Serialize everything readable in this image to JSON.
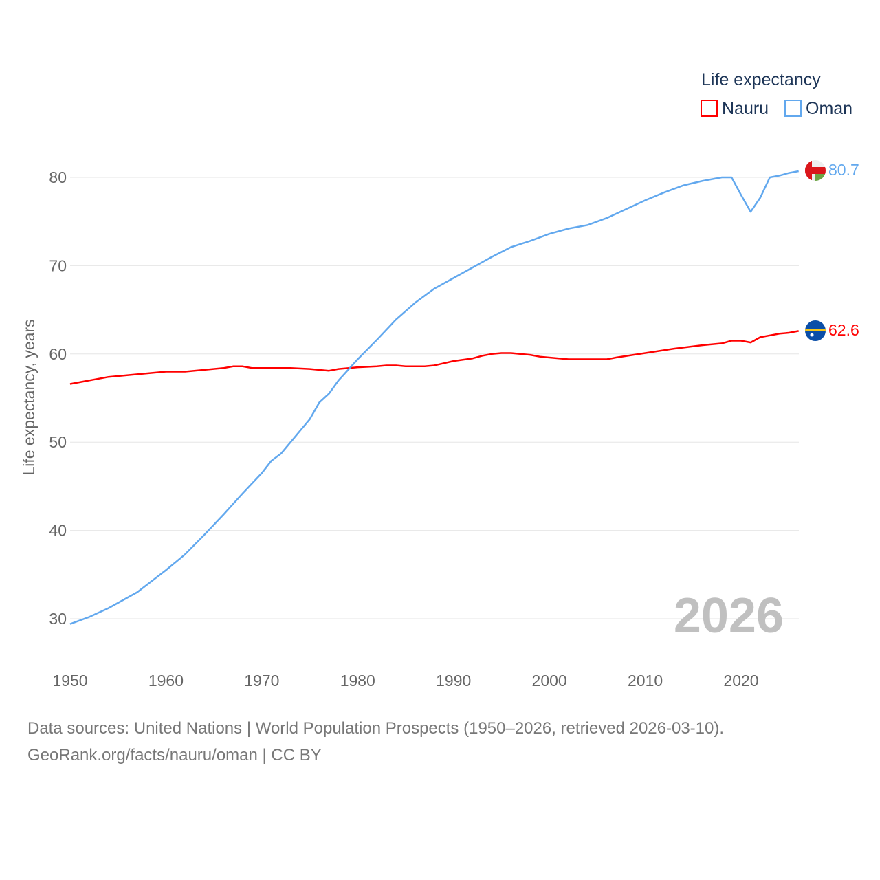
{
  "chart_data": {
    "type": "line",
    "title": "Life expectancy",
    "xlabel": "",
    "ylabel": "Life expectancy, years",
    "xlim": [
      1950,
      2026
    ],
    "ylim": [
      25,
      85
    ],
    "yticks": [
      30,
      40,
      50,
      60,
      70,
      80
    ],
    "xticks": [
      1950,
      1960,
      1970,
      1980,
      1990,
      2000,
      2010,
      2020
    ],
    "grid": true,
    "legend_position": "top-right",
    "year_label": "2026",
    "series": [
      {
        "name": "Nauru",
        "color": "#ff0000",
        "end_label": "62.6",
        "x": [
          1950,
          1954,
          1960,
          1962,
          1966,
          1967,
          1968,
          1969,
          1973,
          1975,
          1977,
          1978,
          1980,
          1982,
          1983,
          1984,
          1985,
          1987,
          1988,
          1990,
          1992,
          1993,
          1994,
          1995,
          1996,
          1998,
          1999,
          2002,
          2004,
          2006,
          2007,
          2010,
          2013,
          2016,
          2018,
          2019,
          2020,
          2021,
          2022,
          2024,
          2025,
          2026
        ],
        "y": [
          56.6,
          57.4,
          58.0,
          58.0,
          58.4,
          58.6,
          58.6,
          58.4,
          58.4,
          58.3,
          58.1,
          58.3,
          58.5,
          58.6,
          58.7,
          58.7,
          58.6,
          58.6,
          58.7,
          59.2,
          59.5,
          59.8,
          60.0,
          60.1,
          60.1,
          59.9,
          59.7,
          59.4,
          59.4,
          59.4,
          59.6,
          60.1,
          60.6,
          61.0,
          61.2,
          61.5,
          61.5,
          61.3,
          61.9,
          62.3,
          62.4,
          62.6
        ]
      },
      {
        "name": "Oman",
        "color": "#62a8ee",
        "end_label": "80.7",
        "x": [
          1950,
          1952,
          1954,
          1957,
          1960,
          1962,
          1964,
          1966,
          1968,
          1970,
          1971,
          1972,
          1973,
          1974,
          1975,
          1976,
          1977,
          1978,
          1980,
          1982,
          1984,
          1986,
          1988,
          1990,
          1992,
          1994,
          1996,
          1998,
          2000,
          2002,
          2004,
          2006,
          2008,
          2010,
          2012,
          2014,
          2016,
          2018,
          2019,
          2020,
          2021,
          2022,
          2023,
          2024,
          2025,
          2026
        ],
        "y": [
          29.4,
          30.2,
          31.2,
          33.0,
          35.5,
          37.3,
          39.5,
          41.8,
          44.2,
          46.5,
          47.9,
          48.7,
          50.0,
          51.3,
          52.6,
          54.5,
          55.5,
          57.0,
          59.4,
          61.6,
          63.9,
          65.8,
          67.4,
          68.6,
          69.8,
          71.0,
          72.1,
          72.8,
          73.6,
          74.2,
          74.6,
          75.4,
          76.4,
          77.4,
          78.3,
          79.1,
          79.6,
          80.0,
          80.0,
          78.0,
          76.1,
          77.7,
          80.0,
          80.2,
          80.5,
          80.7
        ]
      }
    ]
  },
  "footer": {
    "line1": "Data sources: United Nations | World Population Prospects (1950–2026, retrieved 2026-03-10).",
    "line2": "GeoRank.org/facts/nauru/oman | CC BY"
  }
}
